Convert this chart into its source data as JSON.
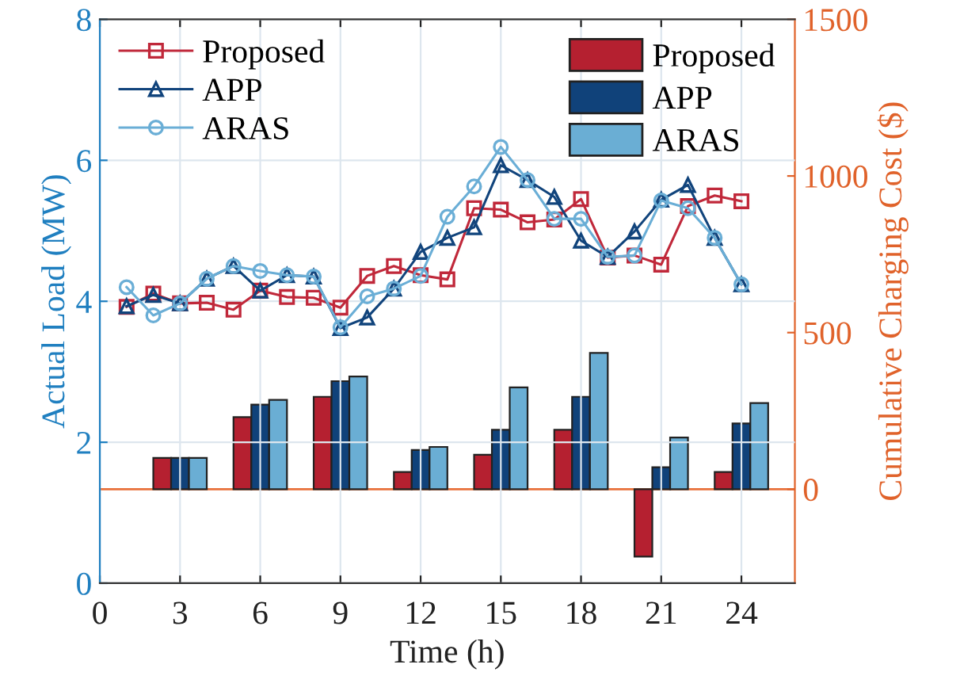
{
  "chart_data": {
    "type": "line",
    "xlabel": "Time (h)",
    "ylabel": "Actual Load (MW)",
    "y2label": "Cumulative Charging Cost ($)",
    "xlim": [
      0,
      26
    ],
    "xticks": [
      0,
      3,
      6,
      9,
      12,
      15,
      18,
      21,
      24
    ],
    "ylim": [
      0,
      8
    ],
    "yticks": [
      0,
      2,
      4,
      6,
      8
    ],
    "y2lim": [
      -300,
      1500
    ],
    "y2ticks": [
      0,
      500,
      1000,
      1500
    ],
    "grid": true,
    "legend": "top",
    "series": [
      {
        "name": "Proposed",
        "axis": "y",
        "marker": "square",
        "color": "#c0283a",
        "x": [
          1,
          2,
          3,
          4,
          5,
          6,
          7,
          8,
          9,
          10,
          11,
          12,
          13,
          14,
          15,
          16,
          17,
          18,
          19,
          20,
          21,
          22,
          23,
          24
        ],
        "values": [
          3.92,
          4.11,
          3.97,
          3.98,
          3.88,
          4.15,
          4.06,
          4.05,
          3.91,
          4.36,
          4.5,
          4.37,
          4.31,
          5.32,
          5.3,
          5.12,
          5.16,
          5.45,
          4.62,
          4.65,
          4.52,
          5.35,
          5.5,
          5.42
        ]
      },
      {
        "name": "APP",
        "axis": "y",
        "marker": "triangle",
        "color": "#11447c",
        "x": [
          1,
          2,
          3,
          4,
          5,
          6,
          7,
          8,
          9,
          10,
          11,
          12,
          13,
          14,
          15,
          16,
          17,
          18,
          19,
          20,
          21,
          22,
          23,
          24
        ],
        "values": [
          3.93,
          4.09,
          3.97,
          4.32,
          4.5,
          4.15,
          4.37,
          4.35,
          3.62,
          3.77,
          4.18,
          4.7,
          4.9,
          5.05,
          5.93,
          5.72,
          5.48,
          4.86,
          4.63,
          4.99,
          5.44,
          5.65,
          4.9,
          4.24
        ]
      },
      {
        "name": "ARAS",
        "axis": "y",
        "marker": "circle",
        "color": "#6aaed6",
        "x": [
          1,
          2,
          3,
          4,
          5,
          6,
          7,
          8,
          9,
          10,
          11,
          12,
          13,
          14,
          15,
          16,
          17,
          18,
          19,
          20,
          21,
          22,
          23,
          24
        ],
        "values": [
          4.2,
          3.8,
          3.97,
          4.32,
          4.5,
          4.43,
          4.37,
          4.35,
          3.63,
          4.07,
          4.18,
          4.36,
          5.2,
          5.63,
          6.19,
          5.72,
          5.17,
          5.17,
          4.63,
          4.65,
          5.43,
          5.32,
          4.9,
          4.24
        ]
      },
      {
        "name": "Proposed",
        "type": "bar",
        "axis": "y2",
        "color": "#b52030",
        "x": [
          3,
          6,
          9,
          12,
          15,
          18,
          21,
          24
        ],
        "values": [
          100,
          230,
          295,
          55,
          110,
          190,
          -215,
          55
        ]
      },
      {
        "name": "APP",
        "type": "bar",
        "axis": "y2",
        "color": "#10427a",
        "x": [
          3,
          6,
          9,
          12,
          15,
          18,
          21,
          24
        ],
        "values": [
          100,
          270,
          345,
          125,
          190,
          295,
          70,
          210
        ]
      },
      {
        "name": "ARAS",
        "type": "bar",
        "axis": "y2",
        "color": "#6aaed4",
        "x": [
          3,
          6,
          9,
          12,
          15,
          18,
          21,
          24
        ],
        "values": [
          100,
          285,
          360,
          135,
          325,
          435,
          165,
          275
        ]
      }
    ],
    "ref_lines": [
      {
        "axis": "y2",
        "value": 0,
        "color": "#e8703a"
      }
    ]
  }
}
